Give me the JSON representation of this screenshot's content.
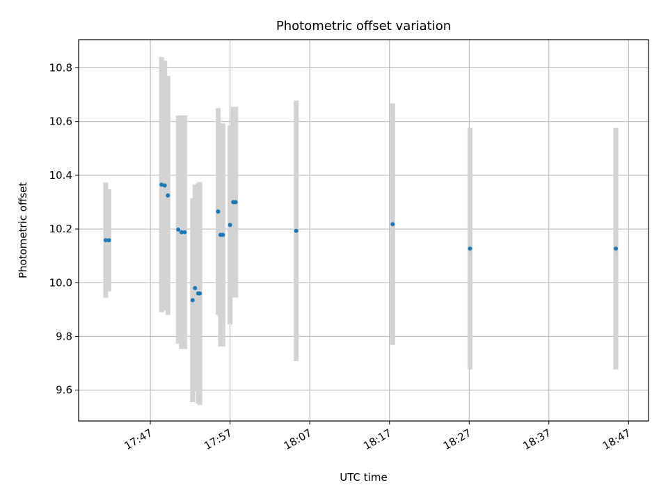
{
  "chart_data": {
    "type": "scatter",
    "title": "Photometric offset variation",
    "xlabel": "UTC time",
    "ylabel": "Photometric offset",
    "grid": true,
    "legend": "none",
    "xlim": [
      "17:38:00",
      "18:49:30"
    ],
    "ylim": [
      9.485,
      10.905
    ],
    "x_ticks": [
      "17:47",
      "17:57",
      "18:07",
      "18:17",
      "18:27",
      "18:37",
      "18:47"
    ],
    "y_ticks": [
      9.6,
      9.8,
      10.0,
      10.2,
      10.4,
      10.6,
      10.8
    ],
    "y_tick_labels": [
      "9.6",
      "9.8",
      "10.0",
      "10.2",
      "10.4",
      "10.6",
      "10.8"
    ],
    "colors": {
      "point": "#1f77b4",
      "errorbar": "#d3d3d3",
      "grid": "#b0b0b0"
    },
    "points": [
      {
        "t": "17:41:24",
        "y": 10.158,
        "err": 0.215
      },
      {
        "t": "17:41:48",
        "y": 10.158,
        "err": 0.19
      },
      {
        "t": "17:48:24",
        "y": 10.365,
        "err": 0.475
      },
      {
        "t": "17:48:48",
        "y": 10.362,
        "err": 0.465
      },
      {
        "t": "17:49:12",
        "y": 10.325,
        "err": 0.445
      },
      {
        "t": "17:50:30",
        "y": 10.198,
        "err": 0.425
      },
      {
        "t": "17:50:54",
        "y": 10.188,
        "err": 0.435
      },
      {
        "t": "17:51:18",
        "y": 10.188,
        "err": 0.435
      },
      {
        "t": "17:52:18",
        "y": 9.935,
        "err": 0.38
      },
      {
        "t": "17:52:36",
        "y": 9.98,
        "err": 0.385
      },
      {
        "t": "17:53:00",
        "y": 9.96,
        "err": 0.41
      },
      {
        "t": "17:53:12",
        "y": 9.96,
        "err": 0.415
      },
      {
        "t": "17:55:30",
        "y": 10.265,
        "err": 0.385
      },
      {
        "t": "17:55:48",
        "y": 10.178,
        "err": 0.415
      },
      {
        "t": "17:56:06",
        "y": 10.178,
        "err": 0.415
      },
      {
        "t": "17:57:00",
        "y": 10.215,
        "err": 0.37
      },
      {
        "t": "17:57:24",
        "y": 10.3,
        "err": 0.355
      },
      {
        "t": "17:57:42",
        "y": 10.3,
        "err": 0.355
      },
      {
        "t": "18:05:18",
        "y": 10.193,
        "err": 0.485
      },
      {
        "t": "18:17:24",
        "y": 10.218,
        "err": 0.45
      },
      {
        "t": "18:27:06",
        "y": 10.127,
        "err": 0.45
      },
      {
        "t": "18:45:24",
        "y": 10.127,
        "err": 0.45
      }
    ]
  }
}
